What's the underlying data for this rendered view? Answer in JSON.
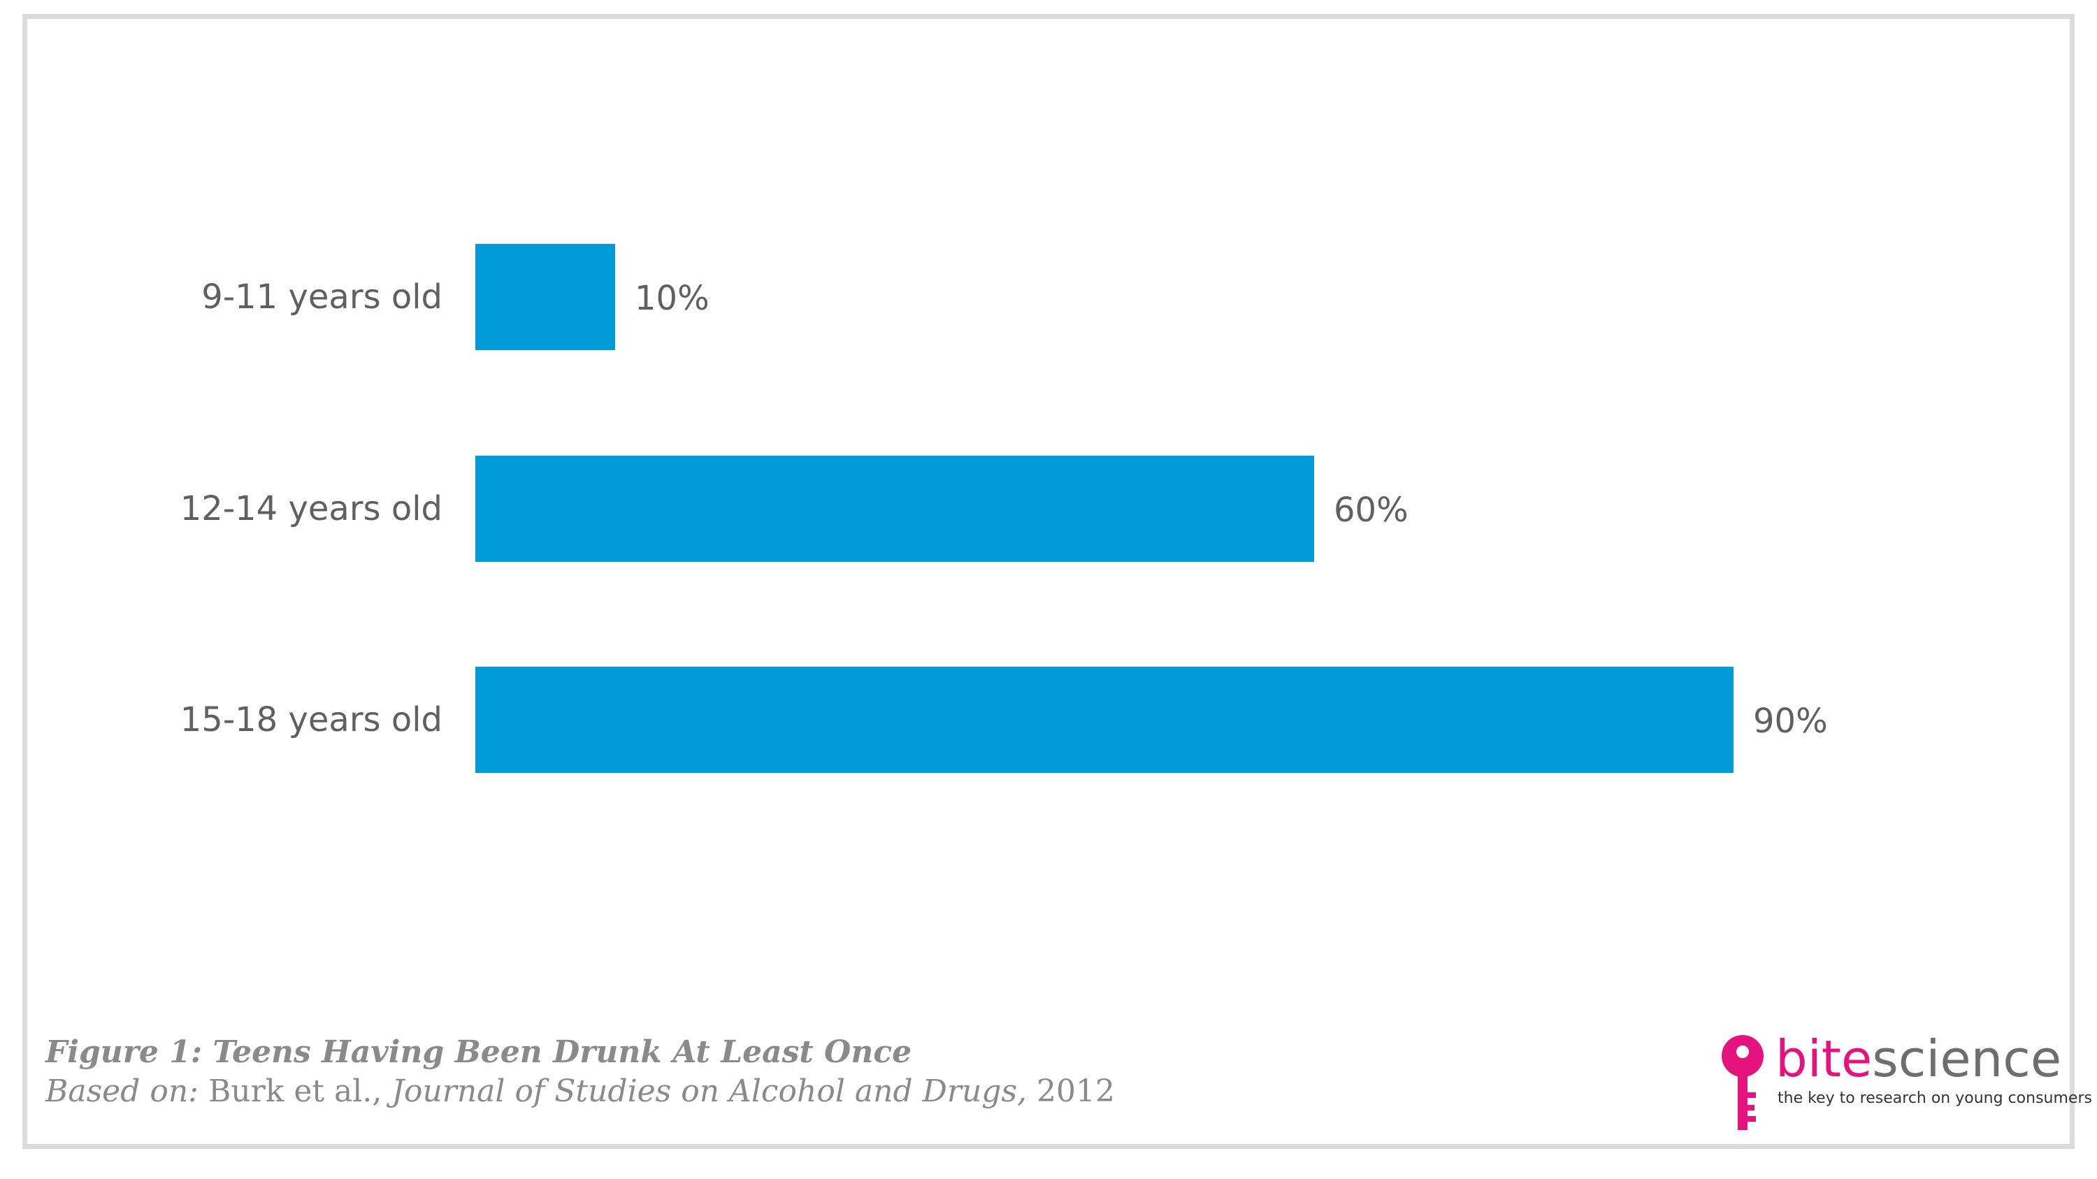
{
  "chart_data": {
    "type": "bar",
    "orientation": "horizontal",
    "categories": [
      "9-11 years old",
      "12-14 years old",
      "15-18 years old"
    ],
    "values": [
      10,
      60,
      90
    ],
    "value_labels": [
      "10%",
      "60%",
      "90%"
    ],
    "xlim": [
      0,
      100
    ],
    "grid": false,
    "bar_color": "#009bd9"
  },
  "caption": {
    "figure_line": "Figure 1: Teens Having Been Drunk At Least Once",
    "based_on_label": "Based on:",
    "authors": "Burk et al.,",
    "journal": "Journal of Studies on Alcohol and Drugs,",
    "year": "2012"
  },
  "logo": {
    "word_part1": "bite",
    "word_part2": "science",
    "tagline": "the key to research on young consumers",
    "color_part1": "#e6137e",
    "color_part2": "#6e6e6e",
    "icon": "key-icon"
  }
}
